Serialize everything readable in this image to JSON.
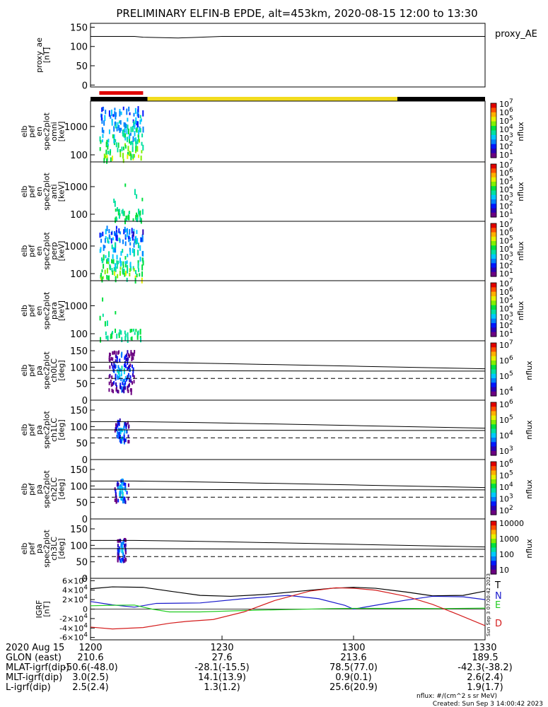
{
  "title": "PRELIMINARY ELFIN-B EPDE, alt=453km, 2020-08-15 12:00 to 13:30",
  "colors": {
    "frame": "#000000",
    "bar_red": "#e00000",
    "bar_yellow": "#f2dc1e",
    "bar_black": "#000000",
    "grf_T": "#000000",
    "grf_N": "#1a1acc",
    "grf_E": "#22cc22",
    "grf_D": "#d41c1c"
  },
  "footer": {
    "date": "2020 Aug 15",
    "rows": [
      {
        "label": "GLON (east)",
        "values": [
          "210.6",
          "27.6",
          "213.6",
          "189.5"
        ]
      },
      {
        "label": "MLAT-igrf(dip)",
        "values": [
          "-50.6(-48.0)",
          "-28.1(-15.5)",
          "78.5(77.0)",
          "-42.3(-38.2)"
        ]
      },
      {
        "label": "MLT-igrf(dip)",
        "values": [
          "3.0(2.5)",
          "14.1(13.9)",
          "0.9(0.1)",
          "2.6(2.4)"
        ]
      },
      {
        "label": "L-igrf(dip)",
        "values": [
          "2.5(2.4)",
          "1.3(1.2)",
          "25.6(20.9)",
          "1.9(1.7)"
        ]
      }
    ],
    "units_note": "nflux: #/(cm^2 s sr MeV)",
    "created": "Created: Sun Sep  3 14:00:42 2023",
    "side_stamp": "Sun Sep  3 07:00:42 2023"
  },
  "chart_data": [
    {
      "type": "line",
      "ylabel": [
        "proxy_ae",
        "[nT]"
      ],
      "ylim": [
        -5,
        160
      ],
      "yticks": [
        "150",
        "100",
        "50",
        "0"
      ],
      "series": [
        {
          "name": "proxy_AE",
          "x": [
            1200,
            1210,
            1212,
            1220,
            1223,
            1230,
            1300,
            1330
          ],
          "values": [
            126,
            126,
            124,
            122,
            123,
            126,
            126,
            126
          ]
        }
      ]
    },
    {
      "type": "bar",
      "x_segments": [
        {
          "from": 1200,
          "to": 1213,
          "color": "black"
        },
        {
          "from": 1213,
          "to": 1310,
          "color": "yellow"
        },
        {
          "from": 1310,
          "to": 1330,
          "color": "black"
        }
      ],
      "marker": {
        "from": 1202,
        "to": 1212,
        "color": "red"
      }
    },
    {
      "type": "heatmap",
      "ylabel": [
        "elb",
        "pef",
        "en",
        "spec2plot",
        "omni",
        "[keV]"
      ],
      "yticks": [
        "1000",
        "100"
      ],
      "yscale": "log",
      "x_range": [
        1202,
        1213
      ],
      "colorbar": {
        "label": "nflux",
        "ticks": [
          "10^7",
          "10^6",
          "10^5",
          "10^4",
          "10^3",
          "10^2",
          "10^1"
        ]
      }
    },
    {
      "type": "heatmap",
      "ylabel": [
        "elb",
        "pef",
        "en",
        "spec2plot",
        "anti",
        "[keV]"
      ],
      "yticks": [
        "1000",
        "100"
      ],
      "yscale": "log",
      "x_range": [
        1205,
        1212
      ],
      "colorbar": {
        "label": "nflux",
        "ticks": [
          "10^7",
          "10^6",
          "10^5",
          "10^4",
          "10^3",
          "10^2",
          "10^1"
        ]
      }
    },
    {
      "type": "heatmap",
      "ylabel": [
        "elb",
        "pef",
        "en",
        "spec2plot",
        "perp",
        "[keV]"
      ],
      "yticks": [
        "1000",
        "100"
      ],
      "yscale": "log",
      "x_range": [
        1202,
        1213
      ],
      "colorbar": {
        "label": "nflux",
        "ticks": [
          "10^7",
          "10^6",
          "10^5",
          "10^4",
          "10^3",
          "10^2",
          "10^1"
        ]
      }
    },
    {
      "type": "heatmap",
      "ylabel": [
        "elb",
        "pef",
        "en",
        "spec2plot",
        "para",
        "[keV]"
      ],
      "yticks": [
        "1000",
        "100"
      ],
      "yscale": "log",
      "x_range": [
        1202,
        1212
      ],
      "colorbar": {
        "label": "nflux",
        "ticks": [
          "10^7",
          "10^6",
          "10^5",
          "10^4",
          "10^3",
          "10^2",
          "10^1"
        ]
      }
    },
    {
      "type": "heatmap",
      "ylabel": [
        "elb",
        "pef",
        "pa",
        "spec2plot",
        "ch0LC",
        "[deg]"
      ],
      "yticks": [
        "150",
        "100",
        "50",
        "0"
      ],
      "ylim": [
        0,
        180
      ],
      "colorbar": {
        "label": "nflux",
        "ticks": [
          "10^7",
          "10^6",
          "10^5",
          "10^4"
        ]
      },
      "lines": {
        "x": [
          1200,
          1210,
          1230,
          1300,
          1330
        ],
        "upper": [
          115,
          115,
          111,
          103,
          95
        ],
        "lower": [
          90,
          90,
          89,
          88,
          88
        ],
        "dashed": 66
      }
    },
    {
      "type": "heatmap",
      "ylabel": [
        "elb",
        "pef",
        "pa",
        "spec2plot",
        "ch1LC",
        "[deg]"
      ],
      "yticks": [
        "150",
        "100",
        "50",
        "0"
      ],
      "ylim": [
        0,
        180
      ],
      "colorbar": {
        "label": "nflux",
        "ticks": [
          "10^6",
          "10^5",
          "10^4",
          "10^3"
        ]
      },
      "lines": {
        "x": [
          1200,
          1210,
          1230,
          1300,
          1330
        ],
        "upper": [
          115,
          115,
          111,
          103,
          95
        ],
        "lower": [
          90,
          90,
          89,
          88,
          88
        ],
        "dashed": 66
      }
    },
    {
      "type": "heatmap",
      "ylabel": [
        "elb",
        "pef",
        "pa",
        "spec2plot",
        "ch2LC",
        "[deg]"
      ],
      "yticks": [
        "150",
        "100",
        "50",
        "0"
      ],
      "ylim": [
        0,
        180
      ],
      "colorbar": {
        "label": "nflux",
        "ticks": [
          "10^6",
          "10^5",
          "10^4",
          "10^3",
          "10^2"
        ]
      },
      "lines": {
        "x": [
          1200,
          1210,
          1230,
          1300,
          1330
        ],
        "upper": [
          115,
          115,
          111,
          103,
          95
        ],
        "lower": [
          90,
          90,
          89,
          88,
          88
        ],
        "dashed": 66
      }
    },
    {
      "type": "heatmap",
      "ylabel": [
        "elb",
        "pef",
        "pa",
        "spec2plot",
        "ch3LC",
        "[deg]"
      ],
      "yticks": [
        "150",
        "100",
        "50",
        "0"
      ],
      "ylim": [
        0,
        180
      ],
      "colorbar": {
        "label": "nflux",
        "ticks": [
          "10000",
          "1000",
          "100",
          "10"
        ]
      },
      "lines": {
        "x": [
          1200,
          1210,
          1230,
          1300,
          1330
        ],
        "upper": [
          115,
          115,
          111,
          103,
          95
        ],
        "lower": [
          90,
          90,
          89,
          88,
          88
        ],
        "dashed": 66
      }
    },
    {
      "type": "line",
      "ylabel": [
        "IGRF",
        "[nT]"
      ],
      "ylim": [
        -65000,
        65000
      ],
      "yticks": [
        "6×10^4",
        "4×10^4",
        "2×10^4",
        "0",
        "-2×10^4",
        "-4×10^4",
        "-6×10^4"
      ],
      "xticks": [
        "1200",
        "1230",
        "1300",
        "1330"
      ],
      "series": [
        {
          "name": "T",
          "x": [
            1200,
            1205,
            1212,
            1218,
            1225,
            1232,
            1240,
            1248,
            1255,
            1300,
            1305,
            1312,
            1318,
            1325,
            1330
          ],
          "values": [
            43000,
            47000,
            46000,
            38000,
            29000,
            27000,
            31000,
            38000,
            44000,
            46000,
            44000,
            36000,
            28000,
            29000,
            38000
          ]
        },
        {
          "name": "N",
          "x": [
            1200,
            1205,
            1210,
            1215,
            1225,
            1235,
            1245,
            1252,
            1258,
            1300,
            1305,
            1312,
            1318,
            1325,
            1330
          ],
          "values": [
            16000,
            9000,
            4000,
            12000,
            13000,
            22000,
            29000,
            22000,
            8000,
            0,
            8000,
            19000,
            27000,
            26000,
            20000
          ]
        },
        {
          "name": "E",
          "x": [
            1200,
            1205,
            1210,
            1214,
            1218,
            1225,
            1235,
            1245,
            1255,
            1300,
            1310,
            1320,
            1330
          ],
          "values": [
            7000,
            8000,
            8500,
            0,
            -6000,
            -6000,
            -3000,
            -1000,
            1000,
            1500,
            1500,
            1000,
            2000
          ]
        },
        {
          "name": "D",
          "x": [
            1200,
            1205,
            1212,
            1218,
            1222,
            1228,
            1235,
            1242,
            1250,
            1256,
            1300,
            1305,
            1312,
            1318,
            1324,
            1330
          ],
          "values": [
            -38000,
            -42000,
            -39000,
            -30000,
            -26000,
            -22000,
            -6000,
            18000,
            38000,
            45000,
            44000,
            40000,
            27000,
            10000,
            -12000,
            -35000
          ]
        }
      ]
    }
  ]
}
